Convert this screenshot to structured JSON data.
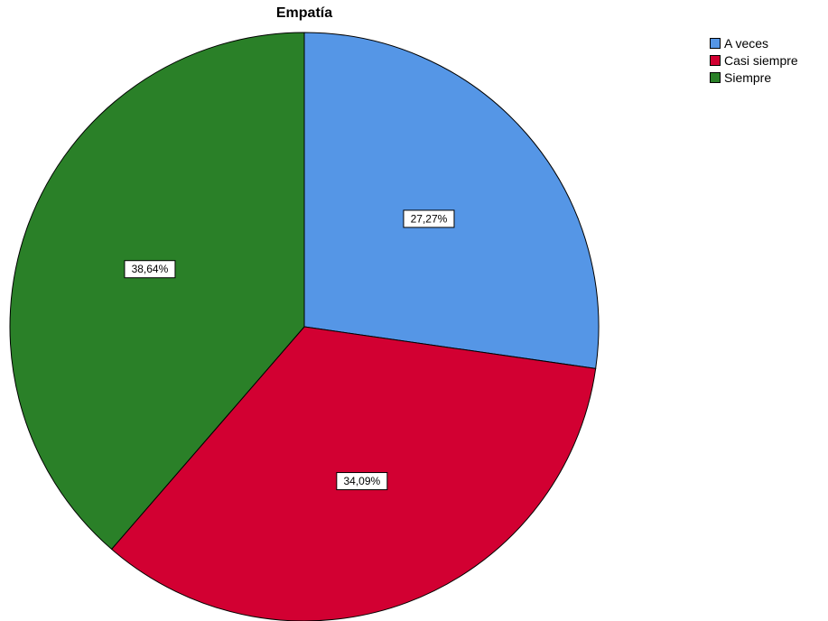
{
  "chart_data": {
    "type": "pie",
    "title": "Empatía",
    "categories": [
      "A veces",
      "Casi siempre",
      "Siempre"
    ],
    "values": [
      27.27,
      34.09,
      38.64
    ],
    "labels": [
      "27,27%",
      "34,09%",
      "38,64%"
    ],
    "colors": [
      "#5596E6",
      "#D20032",
      "#2A8028"
    ],
    "legend_position": "top-right"
  }
}
